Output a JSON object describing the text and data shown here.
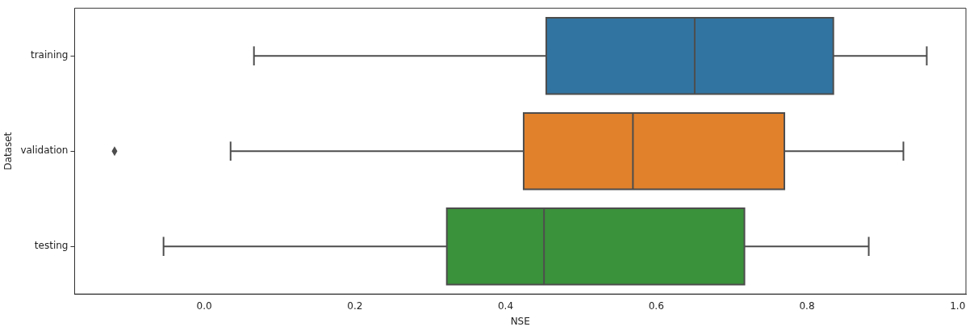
{
  "chart_data": {
    "type": "box",
    "orientation": "horizontal",
    "xlabel": "NSE",
    "ylabel": "Dataset",
    "categories": [
      "training",
      "validation",
      "testing"
    ],
    "colors": [
      "#3274a1",
      "#e1812c",
      "#3a923a"
    ],
    "boxes": [
      {
        "low": 0.066,
        "q1": 0.454,
        "median": 0.651,
        "q3": 0.835,
        "high": 0.959
      },
      {
        "low": 0.035,
        "q1": 0.424,
        "median": 0.569,
        "q3": 0.77,
        "high": 0.928,
        "outliers": [
          -0.119
        ]
      },
      {
        "low": -0.054,
        "q1": 0.322,
        "median": 0.451,
        "q3": 0.717,
        "high": 0.882
      }
    ],
    "xlim": [
      -0.172,
      1.011
    ],
    "xticks": [
      {
        "value": 0,
        "label": "0.0"
      },
      {
        "value": 0.2,
        "label": "0.2"
      },
      {
        "value": 0.4,
        "label": "0.4"
      },
      {
        "value": 0.6,
        "label": "0.6"
      },
      {
        "value": 0.8,
        "label": "0.8"
      },
      {
        "value": 1,
        "label": "1.0"
      }
    ],
    "grid": false,
    "legend": false
  }
}
